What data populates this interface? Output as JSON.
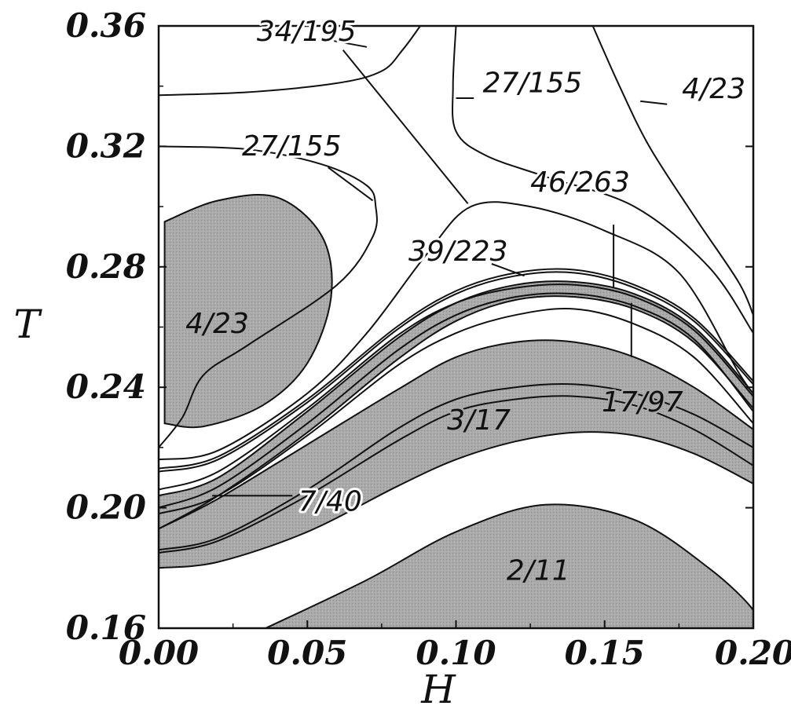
{
  "chart_data": {
    "type": "contour",
    "xlabel": "H",
    "ylabel": "T",
    "xlim": [
      0.0,
      0.2
    ],
    "ylim": [
      0.16,
      0.36
    ],
    "xticks": [
      "0.00",
      "0.05",
      "0.10",
      "0.15",
      "0.20"
    ],
    "yticks": [
      "0.16",
      "0.20",
      "0.24",
      "0.28",
      "0.32",
      "0.36"
    ],
    "grid": false,
    "colors": {
      "shaded": "#a9a9a9",
      "line": "#111111",
      "background": "#ffffff"
    },
    "shaded_regions": [
      {
        "label": "2/11",
        "boundary": [
          [
            0.036,
            0.16
          ],
          [
            0.07,
            0.176
          ],
          [
            0.1,
            0.192
          ],
          [
            0.13,
            0.201
          ],
          [
            0.16,
            0.196
          ],
          [
            0.185,
            0.18
          ],
          [
            0.2,
            0.166
          ],
          [
            0.2,
            0.16
          ]
        ]
      },
      {
        "label": "3/17",
        "upper": [
          [
            0.0,
            0.193
          ],
          [
            0.02,
            0.203
          ],
          [
            0.05,
            0.221
          ],
          [
            0.08,
            0.239
          ],
          [
            0.1,
            0.25
          ],
          [
            0.12,
            0.255
          ],
          [
            0.14,
            0.255
          ],
          [
            0.16,
            0.25
          ],
          [
            0.18,
            0.24
          ],
          [
            0.2,
            0.226
          ]
        ],
        "lower": [
          [
            0.0,
            0.18
          ],
          [
            0.02,
            0.182
          ],
          [
            0.05,
            0.192
          ],
          [
            0.08,
            0.207
          ],
          [
            0.1,
            0.216
          ],
          [
            0.12,
            0.222
          ],
          [
            0.14,
            0.225
          ],
          [
            0.16,
            0.224
          ],
          [
            0.18,
            0.218
          ],
          [
            0.2,
            0.208
          ]
        ]
      },
      {
        "label": "4/23",
        "boundary": [
          [
            0.002,
            0.295
          ],
          [
            0.02,
            0.302
          ],
          [
            0.04,
            0.303
          ],
          [
            0.055,
            0.29
          ],
          [
            0.058,
            0.27
          ],
          [
            0.05,
            0.248
          ],
          [
            0.035,
            0.234
          ],
          [
            0.015,
            0.227
          ],
          [
            0.002,
            0.228
          ]
        ]
      },
      {
        "label": "7/40",
        "upper": [
          [
            0.0,
            0.204
          ],
          [
            0.02,
            0.21
          ],
          [
            0.05,
            0.232
          ],
          [
            0.08,
            0.256
          ],
          [
            0.1,
            0.268
          ],
          [
            0.12,
            0.274
          ],
          [
            0.14,
            0.275
          ],
          [
            0.16,
            0.271
          ],
          [
            0.18,
            0.26
          ],
          [
            0.2,
            0.238
          ]
        ],
        "lower": [
          [
            0.0,
            0.193
          ],
          [
            0.02,
            0.204
          ],
          [
            0.05,
            0.225
          ],
          [
            0.08,
            0.249
          ],
          [
            0.1,
            0.262
          ],
          [
            0.12,
            0.269
          ],
          [
            0.14,
            0.27
          ],
          [
            0.16,
            0.266
          ],
          [
            0.18,
            0.255
          ],
          [
            0.2,
            0.233
          ]
        ]
      }
    ],
    "contours": [
      {
        "label": "34/195",
        "points": [
          [
            0.0,
            0.337
          ],
          [
            0.03,
            0.338
          ],
          [
            0.06,
            0.341
          ],
          [
            0.075,
            0.345
          ],
          [
            0.082,
            0.352
          ],
          [
            0.088,
            0.36
          ]
        ]
      },
      {
        "label": "27/155",
        "points": [
          [
            0.0,
            0.32
          ],
          [
            0.03,
            0.319
          ],
          [
            0.055,
            0.314
          ],
          [
            0.07,
            0.307
          ],
          [
            0.073,
            0.3
          ],
          [
            0.072,
            0.29
          ],
          [
            0.06,
            0.274
          ],
          [
            0.03,
            0.254
          ],
          [
            0.015,
            0.244
          ],
          [
            0.008,
            0.23
          ],
          [
            0.0,
            0.22
          ]
        ]
      },
      {
        "label": "27/155",
        "points": [
          [
            0.0,
            0.216
          ],
          [
            0.02,
            0.219
          ],
          [
            0.05,
            0.238
          ],
          [
            0.07,
            0.258
          ],
          [
            0.09,
            0.284
          ],
          [
            0.105,
            0.3
          ],
          [
            0.125,
            0.3
          ],
          [
            0.15,
            0.292
          ],
          [
            0.175,
            0.278
          ],
          [
            0.195,
            0.245
          ],
          [
            0.2,
            0.238
          ]
        ]
      },
      {
        "label": "27/155",
        "points": [
          [
            0.1,
            0.36
          ],
          [
            0.099,
            0.34
          ],
          [
            0.1,
            0.325
          ],
          [
            0.11,
            0.317
          ],
          [
            0.13,
            0.31
          ],
          [
            0.16,
            0.3
          ],
          [
            0.185,
            0.28
          ],
          [
            0.2,
            0.258
          ]
        ]
      },
      {
        "label": "4/23",
        "points": [
          [
            0.146,
            0.36
          ],
          [
            0.155,
            0.34
          ],
          [
            0.165,
            0.32
          ],
          [
            0.18,
            0.297
          ],
          [
            0.195,
            0.275
          ],
          [
            0.2,
            0.264
          ]
        ]
      },
      {
        "label": "46/263",
        "points": [
          [
            0.0,
            0.212
          ],
          [
            0.02,
            0.216
          ],
          [
            0.05,
            0.235
          ],
          [
            0.08,
            0.259
          ],
          [
            0.1,
            0.271
          ],
          [
            0.12,
            0.277
          ],
          [
            0.14,
            0.278
          ],
          [
            0.16,
            0.273
          ],
          [
            0.18,
            0.262
          ],
          [
            0.2,
            0.241
          ]
        ]
      },
      {
        "label": "39/223",
        "points": [
          [
            0.0,
            0.213
          ],
          [
            0.02,
            0.217
          ],
          [
            0.05,
            0.236
          ],
          [
            0.08,
            0.26
          ],
          [
            0.1,
            0.272
          ],
          [
            0.12,
            0.278
          ],
          [
            0.14,
            0.279
          ],
          [
            0.16,
            0.274
          ],
          [
            0.18,
            0.263
          ],
          [
            0.2,
            0.242
          ]
        ]
      },
      {
        "label": "17/97",
        "points": [
          [
            0.0,
            0.206
          ],
          [
            0.02,
            0.212
          ],
          [
            0.05,
            0.233
          ],
          [
            0.08,
            0.257
          ],
          [
            0.1,
            0.268
          ],
          [
            0.12,
            0.273
          ],
          [
            0.14,
            0.274
          ],
          [
            0.16,
            0.27
          ],
          [
            0.18,
            0.259
          ],
          [
            0.2,
            0.237
          ]
        ]
      },
      {
        "label": "34/195",
        "points": [
          [
            0.0,
            0.2
          ],
          [
            0.02,
            0.207
          ],
          [
            0.05,
            0.228
          ],
          [
            0.08,
            0.252
          ],
          [
            0.1,
            0.264
          ],
          [
            0.12,
            0.27
          ],
          [
            0.14,
            0.271
          ],
          [
            0.16,
            0.267
          ],
          [
            0.18,
            0.256
          ],
          [
            0.2,
            0.232
          ]
        ]
      },
      {
        "label": "",
        "points": [
          [
            0.0,
            0.198
          ],
          [
            0.02,
            0.204
          ],
          [
            0.05,
            0.224
          ],
          [
            0.08,
            0.247
          ],
          [
            0.1,
            0.258
          ],
          [
            0.12,
            0.264
          ],
          [
            0.14,
            0.266
          ],
          [
            0.16,
            0.261
          ],
          [
            0.18,
            0.25
          ],
          [
            0.2,
            0.228
          ]
        ]
      },
      {
        "label": "",
        "points": [
          [
            0.0,
            0.186
          ],
          [
            0.02,
            0.19
          ],
          [
            0.05,
            0.206
          ],
          [
            0.08,
            0.226
          ],
          [
            0.1,
            0.236
          ],
          [
            0.12,
            0.24
          ],
          [
            0.14,
            0.241
          ],
          [
            0.16,
            0.238
          ],
          [
            0.18,
            0.231
          ],
          [
            0.2,
            0.22
          ]
        ]
      },
      {
        "label": "",
        "points": [
          [
            0.0,
            0.185
          ],
          [
            0.02,
            0.189
          ],
          [
            0.05,
            0.204
          ],
          [
            0.08,
            0.222
          ],
          [
            0.1,
            0.232
          ],
          [
            0.12,
            0.236
          ],
          [
            0.14,
            0.237
          ],
          [
            0.16,
            0.234
          ],
          [
            0.18,
            0.226
          ],
          [
            0.2,
            0.214
          ]
        ]
      }
    ],
    "annotations": [
      {
        "text": "34/195",
        "x": 0.033,
        "y": 0.355,
        "leader": [
          [
            0.059,
            0.355
          ],
          [
            0.07,
            0.353
          ]
        ],
        "shaded": false
      },
      {
        "text": "27/155",
        "x": 0.028,
        "y": 0.317,
        "leader": [
          [
            0.057,
            0.313
          ],
          [
            0.072,
            0.302
          ]
        ],
        "shaded": false
      },
      {
        "text": "27/155",
        "x": 0.109,
        "y": 0.338,
        "leader": [
          [
            0.106,
            0.336
          ],
          [
            0.1,
            0.336
          ]
        ],
        "shaded": false
      },
      {
        "text": "4/23",
        "x": 0.176,
        "y": 0.336,
        "leader": [
          [
            0.171,
            0.334
          ],
          [
            0.162,
            0.335
          ]
        ],
        "shaded": false
      },
      {
        "text": "46/263",
        "x": 0.125,
        "y": 0.305,
        "leader": null,
        "shaded": false
      },
      {
        "text": "39/223",
        "x": 0.084,
        "y": 0.282,
        "leader": [
          [
            0.112,
            0.281
          ],
          [
            0.123,
            0.277
          ]
        ],
        "shaded": false
      },
      {
        "text": "4/23",
        "x": 0.009,
        "y": 0.258,
        "leader": null,
        "shaded": true
      },
      {
        "text": "3/17",
        "x": 0.097,
        "y": 0.226,
        "leader": null,
        "shaded": true
      },
      {
        "text": "17/97",
        "x": 0.149,
        "y": 0.232,
        "leader": [
          [
            0.159,
            0.25
          ],
          [
            0.159,
            0.268
          ]
        ],
        "shaded": true
      },
      {
        "text": "7/40",
        "x": 0.047,
        "y": 0.199,
        "leader": [
          [
            0.045,
            0.204
          ],
          [
            0.018,
            0.204
          ]
        ],
        "shaded": false
      },
      {
        "text": "2/11",
        "x": 0.117,
        "y": 0.176,
        "leader": null,
        "shaded": true
      }
    ],
    "extra_leaders": [
      {
        "points": [
          [
            0.062,
            0.352
          ],
          [
            0.104,
            0.301
          ]
        ]
      },
      {
        "points": [
          [
            0.153,
            0.294
          ],
          [
            0.153,
            0.273
          ]
        ]
      }
    ]
  }
}
